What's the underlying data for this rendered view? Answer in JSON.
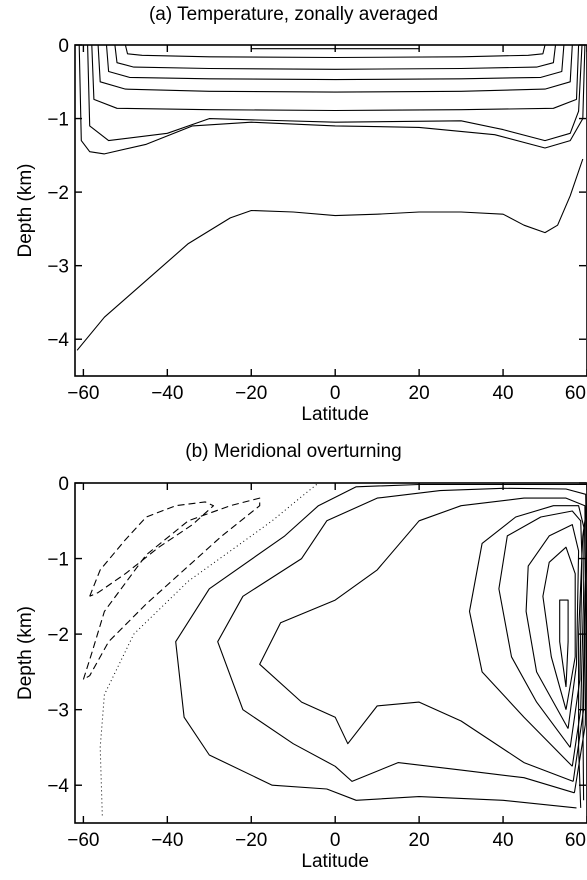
{
  "chart_data": [
    {
      "type": "contour",
      "title": "(a) Temperature, zonally averaged",
      "xlabel": "Latitude",
      "ylabel": "Depth (km)",
      "xlim": [
        -62,
        60
      ],
      "ylim": [
        -4.5,
        0
      ],
      "xticks": [
        -60,
        -40,
        -20,
        0,
        20,
        40,
        60
      ],
      "yticks": [
        0,
        -1,
        -2,
        -3,
        -4
      ],
      "xtick_labels": [
        "−60",
        "−40",
        "−20",
        "0",
        "20",
        "40",
        "60"
      ],
      "ytick_labels": [
        "0",
        "−1",
        "−2",
        "−3",
        "−4"
      ],
      "grid": false,
      "contours": [
        {
          "style": "solid",
          "points": [
            [
              -20,
              -0.02
            ],
            [
              -20,
              -0.05
            ],
            [
              20,
              -0.05
            ],
            [
              20,
              -0.02
            ]
          ]
        },
        {
          "style": "solid",
          "points": [
            [
              -50,
              0
            ],
            [
              -49.5,
              -0.12
            ],
            [
              -46,
              -0.14
            ],
            [
              -30,
              -0.16
            ],
            [
              0,
              -0.17
            ],
            [
              30,
              -0.16
            ],
            [
              46,
              -0.14
            ],
            [
              49.5,
              -0.12
            ],
            [
              50,
              0
            ]
          ]
        },
        {
          "style": "solid",
          "points": [
            [
              -52.5,
              0
            ],
            [
              -52,
              -0.24
            ],
            [
              -48,
              -0.3
            ],
            [
              -30,
              -0.32
            ],
            [
              0,
              -0.33
            ],
            [
              30,
              -0.32
            ],
            [
              48,
              -0.3
            ],
            [
              52,
              -0.24
            ],
            [
              52.5,
              0
            ]
          ]
        },
        {
          "style": "solid",
          "points": [
            [
              -54.5,
              0
            ],
            [
              -54,
              -0.36
            ],
            [
              -49,
              -0.44
            ],
            [
              -30,
              -0.46
            ],
            [
              0,
              -0.47
            ],
            [
              30,
              -0.46
            ],
            [
              49,
              -0.44
            ],
            [
              54,
              -0.36
            ],
            [
              54.5,
              0
            ]
          ]
        },
        {
          "style": "solid",
          "points": [
            [
              -56.5,
              0
            ],
            [
              -56,
              -0.5
            ],
            [
              -50,
              -0.6
            ],
            [
              -30,
              -0.63
            ],
            [
              0,
              -0.64
            ],
            [
              30,
              -0.63
            ],
            [
              50,
              -0.6
            ],
            [
              56,
              -0.5
            ],
            [
              56.5,
              0
            ]
          ]
        },
        {
          "style": "solid",
          "points": [
            [
              -58,
              0
            ],
            [
              -57.5,
              -0.74
            ],
            [
              -52,
              -0.86
            ],
            [
              -30,
              -0.88
            ],
            [
              0,
              -0.89
            ],
            [
              30,
              -0.88
            ],
            [
              52,
              -0.86
            ],
            [
              57.5,
              -0.74
            ],
            [
              58,
              0
            ]
          ]
        },
        {
          "style": "solid",
          "points": [
            [
              -59,
              0
            ],
            [
              -58.5,
              -1.1
            ],
            [
              -54,
              -1.3
            ],
            [
              -40,
              -1.2
            ],
            [
              -30,
              -1.0
            ],
            [
              0,
              -1.05
            ],
            [
              30,
              -1.03
            ],
            [
              40,
              -1.15
            ],
            [
              50,
              -1.3
            ],
            [
              56,
              -1.2
            ],
            [
              58,
              -0.9
            ],
            [
              58.8,
              0
            ]
          ]
        },
        {
          "style": "solid",
          "points": [
            [
              -61,
              0
            ],
            [
              -60.5,
              -1.3
            ],
            [
              -58.5,
              -1.45
            ],
            [
              -55,
              -1.48
            ],
            [
              -45,
              -1.35
            ],
            [
              -34,
              -1.1
            ],
            [
              -20,
              -1.05
            ],
            [
              0,
              -1.1
            ],
            [
              20,
              -1.12
            ],
            [
              38,
              -1.22
            ],
            [
              50,
              -1.4
            ],
            [
              56,
              -1.3
            ],
            [
              59,
              -1.0
            ],
            [
              59.5,
              0
            ]
          ]
        },
        {
          "style": "solid",
          "points": [
            [
              -61.5,
              -4.15
            ],
            [
              -55,
              -3.7
            ],
            [
              -45,
              -3.2
            ],
            [
              -35,
              -2.7
            ],
            [
              -25,
              -2.35
            ],
            [
              -20,
              -2.25
            ],
            [
              -10,
              -2.27
            ],
            [
              0,
              -2.32
            ],
            [
              10,
              -2.3
            ],
            [
              20,
              -2.27
            ],
            [
              30,
              -2.27
            ],
            [
              40,
              -2.3
            ],
            [
              45,
              -2.45
            ],
            [
              50,
              -2.55
            ],
            [
              53,
              -2.45
            ],
            [
              56,
              -2.05
            ],
            [
              59,
              -1.55
            ]
          ]
        }
      ]
    },
    {
      "type": "contour",
      "title": "(b) Meridional overturning",
      "xlabel": "Latitude",
      "ylabel": "Depth (km)",
      "xlim": [
        -62,
        60
      ],
      "ylim": [
        -4.5,
        0
      ],
      "xticks": [
        -60,
        -40,
        -20,
        0,
        20,
        40,
        60
      ],
      "yticks": [
        0,
        -1,
        -2,
        -3,
        -4
      ],
      "xtick_labels": [
        "−60",
        "−40",
        "−20",
        "0",
        "20",
        "40",
        "60"
      ],
      "ytick_labels": [
        "0",
        "−1",
        "−2",
        "−3",
        "−4"
      ],
      "grid": false,
      "contours": [
        {
          "style": "dashed",
          "points": [
            [
              -58.5,
              -1.5
            ],
            [
              -56,
              -1.15
            ],
            [
              -50,
              -0.75
            ],
            [
              -45,
              -0.45
            ],
            [
              -38,
              -0.3
            ],
            [
              -31,
              -0.25
            ],
            [
              -29,
              -0.3
            ],
            [
              -34,
              -0.55
            ],
            [
              -42,
              -0.85
            ],
            [
              -50,
              -1.2
            ],
            [
              -56.5,
              -1.45
            ],
            [
              -58.5,
              -1.5
            ]
          ]
        },
        {
          "style": "dashed",
          "points": [
            [
              -60,
              -2.6
            ],
            [
              -58,
              -2.25
            ],
            [
              -55,
              -1.7
            ],
            [
              -45,
              -0.95
            ],
            [
              -35,
              -0.5
            ],
            [
              -25,
              -0.3
            ],
            [
              -18,
              -0.2
            ],
            [
              -18,
              -0.3
            ],
            [
              -27,
              -0.7
            ],
            [
              -35,
              -1.1
            ],
            [
              -45,
              -1.6
            ],
            [
              -54,
              -2.1
            ],
            [
              -58.5,
              -2.55
            ],
            [
              -60,
              -2.6
            ]
          ]
        },
        {
          "style": "solid",
          "points": [
            [
              59.2,
              -4.2
            ],
            [
              59,
              -3.0
            ],
            [
              59.5,
              -1.5
            ],
            [
              60,
              -0.8
            ]
          ]
        },
        {
          "style": "solid",
          "points": [
            [
              58.5,
              -4.3
            ],
            [
              58,
              -3.5
            ],
            [
              58,
              -2.0
            ],
            [
              59,
              -0.7
            ],
            [
              60,
              -0.3
            ]
          ]
        },
        {
          "style": "solid",
          "points": [
            [
              55,
              -2.7
            ],
            [
              53.5,
              -2.1
            ],
            [
              53.5,
              -1.55
            ],
            [
              55.5,
              -1.55
            ],
            [
              55.5,
              -2.1
            ],
            [
              55,
              -2.7
            ]
          ]
        },
        {
          "style": "solid",
          "points": [
            [
              55,
              -3.0
            ],
            [
              51.5,
              -2.3
            ],
            [
              49.5,
              -1.5
            ],
            [
              51,
              -1.05
            ],
            [
              55,
              -0.85
            ],
            [
              57.2,
              -1.2
            ],
            [
              57.2,
              -2.3
            ],
            [
              55,
              -3.0
            ]
          ]
        },
        {
          "style": "solid",
          "points": [
            [
              55.5,
              -3.25
            ],
            [
              48,
              -2.5
            ],
            [
              45.5,
              -1.7
            ],
            [
              46,
              -1.1
            ],
            [
              51,
              -0.7
            ],
            [
              56.5,
              -0.55
            ],
            [
              58,
              -0.9
            ],
            [
              57.5,
              -2.4
            ],
            [
              55.5,
              -3.25
            ]
          ]
        },
        {
          "style": "solid",
          "points": [
            [
              56,
              -3.5
            ],
            [
              48,
              -2.9
            ],
            [
              42,
              -2.3
            ],
            [
              39,
              -1.4
            ],
            [
              41,
              -0.7
            ],
            [
              49,
              -0.45
            ],
            [
              56.5,
              -0.37
            ],
            [
              58.5,
              -0.5
            ],
            [
              58.8,
              -1.0
            ],
            [
              58.3,
              -2.6
            ],
            [
              56,
              -3.5
            ]
          ]
        },
        {
          "style": "solid",
          "points": [
            [
              56.5,
              -3.75
            ],
            [
              45,
              -3.1
            ],
            [
              35,
              -2.5
            ],
            [
              32,
              -1.7
            ],
            [
              35,
              -0.8
            ],
            [
              43,
              -0.45
            ],
            [
              52,
              -0.3
            ],
            [
              58,
              -0.3
            ],
            [
              59.3,
              -0.6
            ],
            [
              59.2,
              -1.5
            ],
            [
              58.5,
              -3.0
            ],
            [
              56.5,
              -3.75
            ]
          ]
        },
        {
          "style": "solid",
          "points": [
            [
              56.7,
              -3.95
            ],
            [
              45,
              -3.7
            ],
            [
              30,
              -3.15
            ],
            [
              20,
              -2.9
            ],
            [
              10,
              -2.95
            ],
            [
              3,
              -3.45
            ],
            [
              0,
              -3.1
            ],
            [
              -8,
              -2.9
            ],
            [
              -18,
              -2.4
            ],
            [
              -13,
              -1.85
            ],
            [
              0,
              -1.55
            ],
            [
              10,
              -1.15
            ],
            [
              20,
              -0.5
            ],
            [
              30,
              -0.3
            ],
            [
              45,
              -0.2
            ],
            [
              55,
              -0.2
            ],
            [
              59.5,
              -0.3
            ],
            [
              59.7,
              -1.5
            ],
            [
              59.2,
              -3.0
            ],
            [
              56.7,
              -3.95
            ]
          ]
        },
        {
          "style": "solid",
          "points": [
            [
              57,
              -4.1
            ],
            [
              45,
              -3.9
            ],
            [
              30,
              -3.8
            ],
            [
              15,
              -3.7
            ],
            [
              4,
              -3.95
            ],
            [
              0,
              -3.75
            ],
            [
              -10,
              -3.45
            ],
            [
              -22,
              -3.0
            ],
            [
              -28,
              -2.1
            ],
            [
              -22,
              -1.5
            ],
            [
              -8,
              -1.0
            ],
            [
              -2,
              -0.5
            ],
            [
              10,
              -0.2
            ],
            [
              25,
              -0.1
            ],
            [
              40,
              -0.07
            ],
            [
              55,
              -0.08
            ],
            [
              59.7,
              -0.15
            ],
            [
              60,
              -1.2
            ],
            [
              59.6,
              -3.2
            ],
            [
              57,
              -4.1
            ]
          ]
        },
        {
          "style": "solid",
          "points": [
            [
              57.5,
              -4.3
            ],
            [
              40,
              -4.2
            ],
            [
              20,
              -4.15
            ],
            [
              5,
              -4.2
            ],
            [
              -2,
              -4.05
            ],
            [
              -15,
              -4.0
            ],
            [
              -30,
              -3.6
            ],
            [
              -36,
              -3.1
            ],
            [
              -38,
              -2.1
            ],
            [
              -30,
              -1.4
            ],
            [
              -12,
              -0.7
            ],
            [
              -4,
              -0.3
            ],
            [
              5,
              -0.05
            ],
            [
              20,
              -0.02
            ],
            [
              45,
              -0.02
            ],
            [
              60,
              -0.02
            ]
          ]
        },
        {
          "style": "dotted",
          "points": [
            [
              -55.5,
              -4.4
            ],
            [
              -56,
              -3.5
            ],
            [
              -55,
              -2.8
            ],
            [
              -48,
              -2.0
            ],
            [
              -35,
              -1.3
            ],
            [
              -25,
              -0.9
            ],
            [
              -15,
              -0.5
            ],
            [
              -8,
              -0.18
            ],
            [
              -4,
              0
            ]
          ]
        }
      ]
    }
  ]
}
